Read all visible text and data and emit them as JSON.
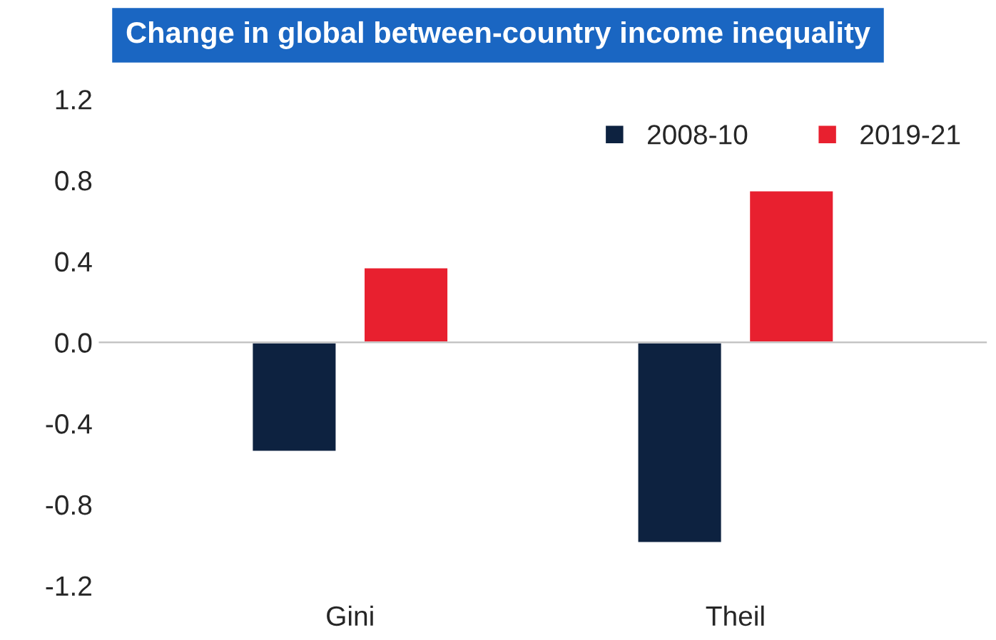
{
  "chart_data": {
    "type": "bar",
    "title": "Change in global between-country income inequality",
    "categories": [
      "Gini",
      "Theil"
    ],
    "series": [
      {
        "name": "2008-10",
        "color": "#0d2240",
        "values": [
          -0.54,
          -0.99
        ]
      },
      {
        "name": "2019-21",
        "color": "#e8202f",
        "values": [
          0.37,
          0.75
        ]
      }
    ],
    "ylim": [
      -1.2,
      1.2
    ],
    "yticks": [
      {
        "value": 1.2,
        "label": "1.2"
      },
      {
        "value": 0.8,
        "label": "0.8"
      },
      {
        "value": 0.4,
        "label": "0.4"
      },
      {
        "value": 0,
        "label": "0.0"
      },
      {
        "value": -0.4,
        "label": "-0.4"
      },
      {
        "value": -0.8,
        "label": "-0.8"
      },
      {
        "value": -1.2,
        "label": "-1.2"
      }
    ],
    "legend": "top right"
  }
}
